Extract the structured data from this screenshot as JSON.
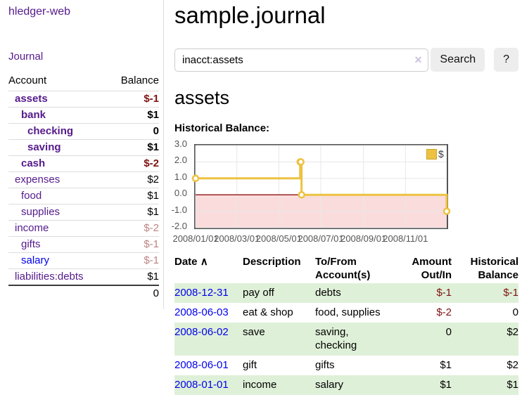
{
  "sidebar": {
    "brand": "hledger-web",
    "journal_label": "Journal",
    "accounts_header": {
      "account": "Account",
      "balance": "Balance"
    },
    "accounts": [
      {
        "name": "assets",
        "level": 1,
        "bold": true,
        "link_color": "purple",
        "balance": "$-1",
        "balance_class": "neg"
      },
      {
        "name": "bank",
        "level": 2,
        "bold": true,
        "link_color": "purple",
        "balance": "$1",
        "balance_class": "pos"
      },
      {
        "name": "checking",
        "level": 3,
        "bold": true,
        "link_color": "purple",
        "balance": "0",
        "balance_class": "pos"
      },
      {
        "name": "saving",
        "level": 3,
        "bold": true,
        "link_color": "purple",
        "balance": "$1",
        "balance_class": "pos"
      },
      {
        "name": "cash",
        "level": 2,
        "bold": true,
        "link_color": "purple",
        "balance": "$-2",
        "balance_class": "neg"
      },
      {
        "name": "expenses",
        "level": 1,
        "bold": false,
        "link_color": "purple",
        "balance": "$2",
        "balance_class": "pos"
      },
      {
        "name": "food",
        "level": 2,
        "bold": false,
        "link_color": "purple",
        "balance": "$1",
        "balance_class": "pos"
      },
      {
        "name": "supplies",
        "level": 2,
        "bold": false,
        "link_color": "purple",
        "balance": "$1",
        "balance_class": "pos"
      },
      {
        "name": "income",
        "level": 1,
        "bold": false,
        "link_color": "purple",
        "balance": "$-2",
        "balance_class": "negfaded"
      },
      {
        "name": "gifts",
        "level": 2,
        "bold": false,
        "link_color": "purple",
        "balance": "$-1",
        "balance_class": "negfaded"
      },
      {
        "name": "salary",
        "level": 2,
        "bold": false,
        "link_color": "blue",
        "balance": "$-1",
        "balance_class": "negfaded"
      },
      {
        "name": "liabilities:debts",
        "level": 1,
        "bold": false,
        "link_color": "purple",
        "balance": "$1",
        "balance_class": "pos"
      }
    ],
    "total": "0"
  },
  "main": {
    "title": "sample.journal",
    "search": {
      "value": "inacct:assets",
      "clear_icon": "✕",
      "button_label": "Search",
      "help_label": "?"
    },
    "account_heading": "assets"
  },
  "chart_data": {
    "type": "line",
    "step": true,
    "title": "Historical Balance:",
    "x": [
      "2008-01-01",
      "2008-06-01",
      "2008-06-02",
      "2008-06-03",
      "2008-12-31"
    ],
    "series": [
      {
        "name": "$",
        "color": "#edc240",
        "values": [
          1,
          2,
          2,
          0,
          -1
        ]
      }
    ],
    "xlim": [
      "2008-01-01",
      "2008-12-31"
    ],
    "ylim": [
      -2,
      3
    ],
    "x_ticks": [
      {
        "date": "2008-01-01",
        "label": "2008/01/01"
      },
      {
        "date": "2008-03-01",
        "label": "2008/03/01"
      },
      {
        "date": "2008-05-01",
        "label": "2008/05/01"
      },
      {
        "date": "2008-07-01",
        "label": "2008/07/01"
      },
      {
        "date": "2008-09-01",
        "label": "2008/09/01"
      },
      {
        "date": "2008-11-01",
        "label": "2008/11/01"
      }
    ],
    "y_ticks": [
      {
        "value": 3,
        "label": "3.0"
      },
      {
        "value": 2,
        "label": "2.0"
      },
      {
        "value": 1,
        "label": "1.0"
      },
      {
        "value": 0,
        "label": "0.0"
      },
      {
        "value": -1,
        "label": "-1.0"
      },
      {
        "value": -2,
        "label": "-2.0"
      }
    ],
    "legend": {
      "position": "top-right",
      "label": "$",
      "swatch_color": "#edc240"
    },
    "grid": true,
    "colors": {
      "grid": "#e7e7e7",
      "border": "#545454",
      "tick_text": "#545454",
      "zero_line": "#8f1010",
      "negative_fill": "#fbdcdc",
      "marker_fill": "#ffffff"
    }
  },
  "register": {
    "sort_indicator": "∧",
    "headers": [
      "Date",
      "Description",
      "To/From Account(s)",
      "Amount Out/In",
      "Historical Balance"
    ],
    "rows": [
      {
        "date": "2008-12-31",
        "description": "pay off",
        "accounts": "debts",
        "amount": "$-1",
        "amount_negative": true,
        "balance": "$-1",
        "balance_negative": true,
        "highlight": true
      },
      {
        "date": "2008-06-03",
        "description": "eat & shop",
        "accounts": "food, supplies",
        "amount": "$-2",
        "amount_negative": true,
        "balance": "0",
        "balance_negative": false,
        "highlight": false
      },
      {
        "date": "2008-06-02",
        "description": "save",
        "accounts": "saving, checking",
        "amount": "0",
        "amount_negative": false,
        "balance": "$2",
        "balance_negative": false,
        "highlight": true
      },
      {
        "date": "2008-06-01",
        "description": "gift",
        "accounts": "gifts",
        "amount": "$1",
        "amount_negative": false,
        "balance": "$2",
        "balance_negative": false,
        "highlight": false
      },
      {
        "date": "2008-01-01",
        "description": "income",
        "accounts": "salary",
        "amount": "$1",
        "amount_negative": false,
        "balance": "$1",
        "balance_negative": false,
        "highlight": true
      }
    ]
  },
  "colors": {
    "link_purple": "#551a8b",
    "link_blue": "#0000ee",
    "negative": "#7d1313",
    "negative_faded": "#c08383",
    "row_highlight": "#dff0d8",
    "button_bg": "#ededed"
  }
}
